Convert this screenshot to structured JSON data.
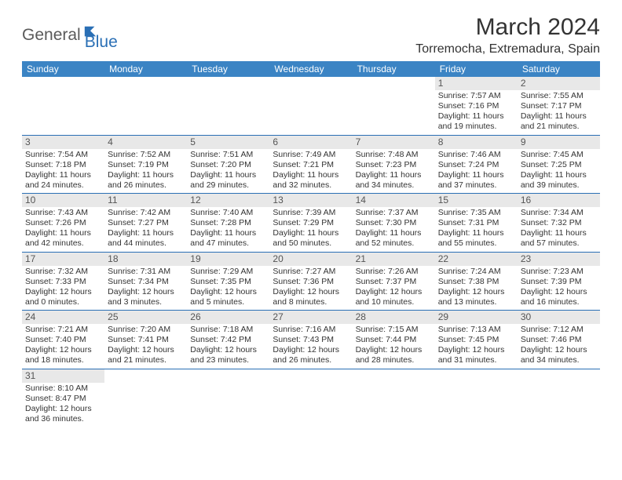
{
  "logo": {
    "part1": "General",
    "part2": "Blue"
  },
  "title": "March 2024",
  "location": "Torremocha, Extremadura, Spain",
  "colors": {
    "header_bg": "#3b84c4",
    "header_text": "#ffffff",
    "daynum_bg": "#e8e8e8",
    "row_border": "#2a6fb5",
    "logo_gray": "#5a5a5a",
    "logo_blue": "#2a6fb5"
  },
  "weekdays": [
    "Sunday",
    "Monday",
    "Tuesday",
    "Wednesday",
    "Thursday",
    "Friday",
    "Saturday"
  ],
  "cells": [
    [
      {
        "empty": true
      },
      {
        "empty": true
      },
      {
        "empty": true
      },
      {
        "empty": true
      },
      {
        "empty": true
      },
      {
        "day": "1",
        "sunrise": "Sunrise: 7:57 AM",
        "sunset": "Sunset: 7:16 PM",
        "daylight": "Daylight: 11 hours and 19 minutes."
      },
      {
        "day": "2",
        "sunrise": "Sunrise: 7:55 AM",
        "sunset": "Sunset: 7:17 PM",
        "daylight": "Daylight: 11 hours and 21 minutes."
      }
    ],
    [
      {
        "day": "3",
        "sunrise": "Sunrise: 7:54 AM",
        "sunset": "Sunset: 7:18 PM",
        "daylight": "Daylight: 11 hours and 24 minutes."
      },
      {
        "day": "4",
        "sunrise": "Sunrise: 7:52 AM",
        "sunset": "Sunset: 7:19 PM",
        "daylight": "Daylight: 11 hours and 26 minutes."
      },
      {
        "day": "5",
        "sunrise": "Sunrise: 7:51 AM",
        "sunset": "Sunset: 7:20 PM",
        "daylight": "Daylight: 11 hours and 29 minutes."
      },
      {
        "day": "6",
        "sunrise": "Sunrise: 7:49 AM",
        "sunset": "Sunset: 7:21 PM",
        "daylight": "Daylight: 11 hours and 32 minutes."
      },
      {
        "day": "7",
        "sunrise": "Sunrise: 7:48 AM",
        "sunset": "Sunset: 7:23 PM",
        "daylight": "Daylight: 11 hours and 34 minutes."
      },
      {
        "day": "8",
        "sunrise": "Sunrise: 7:46 AM",
        "sunset": "Sunset: 7:24 PM",
        "daylight": "Daylight: 11 hours and 37 minutes."
      },
      {
        "day": "9",
        "sunrise": "Sunrise: 7:45 AM",
        "sunset": "Sunset: 7:25 PM",
        "daylight": "Daylight: 11 hours and 39 minutes."
      }
    ],
    [
      {
        "day": "10",
        "sunrise": "Sunrise: 7:43 AM",
        "sunset": "Sunset: 7:26 PM",
        "daylight": "Daylight: 11 hours and 42 minutes."
      },
      {
        "day": "11",
        "sunrise": "Sunrise: 7:42 AM",
        "sunset": "Sunset: 7:27 PM",
        "daylight": "Daylight: 11 hours and 44 minutes."
      },
      {
        "day": "12",
        "sunrise": "Sunrise: 7:40 AM",
        "sunset": "Sunset: 7:28 PM",
        "daylight": "Daylight: 11 hours and 47 minutes."
      },
      {
        "day": "13",
        "sunrise": "Sunrise: 7:39 AM",
        "sunset": "Sunset: 7:29 PM",
        "daylight": "Daylight: 11 hours and 50 minutes."
      },
      {
        "day": "14",
        "sunrise": "Sunrise: 7:37 AM",
        "sunset": "Sunset: 7:30 PM",
        "daylight": "Daylight: 11 hours and 52 minutes."
      },
      {
        "day": "15",
        "sunrise": "Sunrise: 7:35 AM",
        "sunset": "Sunset: 7:31 PM",
        "daylight": "Daylight: 11 hours and 55 minutes."
      },
      {
        "day": "16",
        "sunrise": "Sunrise: 7:34 AM",
        "sunset": "Sunset: 7:32 PM",
        "daylight": "Daylight: 11 hours and 57 minutes."
      }
    ],
    [
      {
        "day": "17",
        "sunrise": "Sunrise: 7:32 AM",
        "sunset": "Sunset: 7:33 PM",
        "daylight": "Daylight: 12 hours and 0 minutes."
      },
      {
        "day": "18",
        "sunrise": "Sunrise: 7:31 AM",
        "sunset": "Sunset: 7:34 PM",
        "daylight": "Daylight: 12 hours and 3 minutes."
      },
      {
        "day": "19",
        "sunrise": "Sunrise: 7:29 AM",
        "sunset": "Sunset: 7:35 PM",
        "daylight": "Daylight: 12 hours and 5 minutes."
      },
      {
        "day": "20",
        "sunrise": "Sunrise: 7:27 AM",
        "sunset": "Sunset: 7:36 PM",
        "daylight": "Daylight: 12 hours and 8 minutes."
      },
      {
        "day": "21",
        "sunrise": "Sunrise: 7:26 AM",
        "sunset": "Sunset: 7:37 PM",
        "daylight": "Daylight: 12 hours and 10 minutes."
      },
      {
        "day": "22",
        "sunrise": "Sunrise: 7:24 AM",
        "sunset": "Sunset: 7:38 PM",
        "daylight": "Daylight: 12 hours and 13 minutes."
      },
      {
        "day": "23",
        "sunrise": "Sunrise: 7:23 AM",
        "sunset": "Sunset: 7:39 PM",
        "daylight": "Daylight: 12 hours and 16 minutes."
      }
    ],
    [
      {
        "day": "24",
        "sunrise": "Sunrise: 7:21 AM",
        "sunset": "Sunset: 7:40 PM",
        "daylight": "Daylight: 12 hours and 18 minutes."
      },
      {
        "day": "25",
        "sunrise": "Sunrise: 7:20 AM",
        "sunset": "Sunset: 7:41 PM",
        "daylight": "Daylight: 12 hours and 21 minutes."
      },
      {
        "day": "26",
        "sunrise": "Sunrise: 7:18 AM",
        "sunset": "Sunset: 7:42 PM",
        "daylight": "Daylight: 12 hours and 23 minutes."
      },
      {
        "day": "27",
        "sunrise": "Sunrise: 7:16 AM",
        "sunset": "Sunset: 7:43 PM",
        "daylight": "Daylight: 12 hours and 26 minutes."
      },
      {
        "day": "28",
        "sunrise": "Sunrise: 7:15 AM",
        "sunset": "Sunset: 7:44 PM",
        "daylight": "Daylight: 12 hours and 28 minutes."
      },
      {
        "day": "29",
        "sunrise": "Sunrise: 7:13 AM",
        "sunset": "Sunset: 7:45 PM",
        "daylight": "Daylight: 12 hours and 31 minutes."
      },
      {
        "day": "30",
        "sunrise": "Sunrise: 7:12 AM",
        "sunset": "Sunset: 7:46 PM",
        "daylight": "Daylight: 12 hours and 34 minutes."
      }
    ],
    [
      {
        "day": "31",
        "sunrise": "Sunrise: 8:10 AM",
        "sunset": "Sunset: 8:47 PM",
        "daylight": "Daylight: 12 hours and 36 minutes."
      },
      {
        "empty": true
      },
      {
        "empty": true
      },
      {
        "empty": true
      },
      {
        "empty": true
      },
      {
        "empty": true
      },
      {
        "empty": true
      }
    ]
  ]
}
